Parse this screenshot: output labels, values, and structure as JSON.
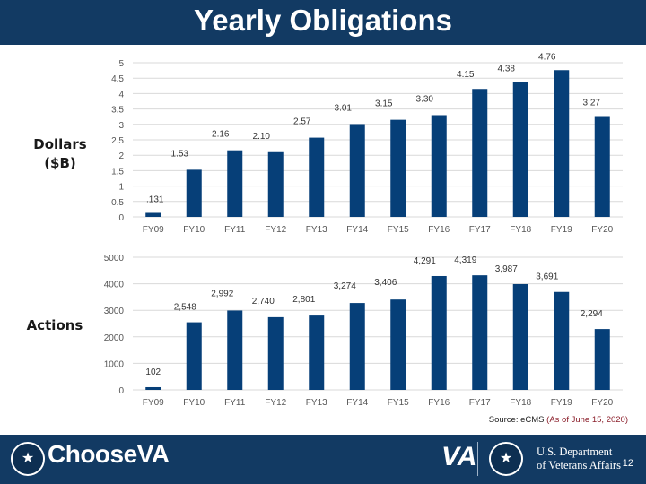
{
  "header": {
    "title": "Yearly Obligations"
  },
  "labels": {
    "dollars": "Dollars ($B)",
    "actions": "Actions"
  },
  "source": {
    "prefix": "Source: eCMS ",
    "date": "(As of June 15, 2020)"
  },
  "footer": {
    "brand_prefix": "Choose",
    "brand_suffix": "VA",
    "va_mark": "VA",
    "dept_line1": "U.S. Department",
    "dept_line2": "of Veterans Affairs",
    "page_number": "12"
  },
  "colors": {
    "bar": "#063f78",
    "header": "#123a63",
    "grid": "#d9d9d9"
  },
  "chart_data": [
    {
      "type": "bar",
      "title": "Dollars ($B)",
      "categories": [
        "FY09",
        "FY10",
        "FY11",
        "FY12",
        "FY13",
        "FY14",
        "FY15",
        "FY16",
        "FY17",
        "FY18",
        "FY19",
        "FY20"
      ],
      "values": [
        0.131,
        1.53,
        2.16,
        2.1,
        2.57,
        3.01,
        3.15,
        3.3,
        4.15,
        4.38,
        4.76,
        3.27
      ],
      "data_labels": [
        ".131",
        "1.53",
        "2.16",
        "2.10",
        "2.57",
        "3.01",
        "3.15",
        "3.30",
        "4.15",
        "4.38",
        "4.76",
        "3.27"
      ],
      "ylim": [
        0,
        5
      ],
      "yticks": [
        0,
        0.5,
        1,
        1.5,
        2,
        2.5,
        3,
        3.5,
        4,
        4.5,
        5
      ],
      "ytick_labels": [
        "0",
        "0.5",
        "1",
        "1.5",
        "2",
        "2.5",
        "3",
        "3.5",
        "4",
        "4.5",
        "5"
      ],
      "ylabel": "Dollars ($B)",
      "grid": true
    },
    {
      "type": "bar",
      "title": "Actions",
      "categories": [
        "FY09",
        "FY10",
        "FY11",
        "FY12",
        "FY13",
        "FY14",
        "FY15",
        "FY16",
        "FY17",
        "FY18",
        "FY19",
        "FY20"
      ],
      "values": [
        102,
        2548,
        2992,
        2740,
        2801,
        3274,
        3406,
        4291,
        4319,
        3987,
        3691,
        2294
      ],
      "data_labels": [
        "102",
        "2,548",
        "2,992",
        "2,740",
        "2,801",
        "3,274",
        "3,406",
        "4,291",
        "4,319",
        "3,987",
        "3,691",
        "2,294"
      ],
      "ylim": [
        0,
        5000
      ],
      "yticks": [
        0,
        1000,
        2000,
        3000,
        4000,
        5000
      ],
      "ytick_labels": [
        "0",
        "1000",
        "2000",
        "3000",
        "4000",
        "5000"
      ],
      "ylabel": "Actions",
      "grid": true
    }
  ]
}
